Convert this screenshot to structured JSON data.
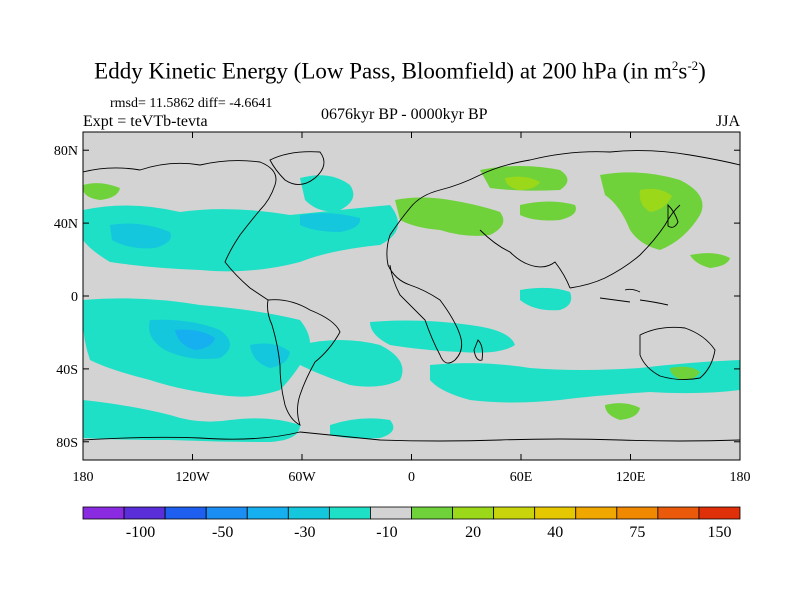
{
  "title": {
    "main": "Eddy Kinetic Energy (Low Pass, Bloomfield) at 200 hPa (in m",
    "sup1": "2",
    "mid": "s",
    "sup2": "-2",
    "close": ")"
  },
  "stats": "rmsd= 11.5862 diff= -4.6641",
  "expt": "Expt = teVTb-tevta",
  "period": "0676kyr BP - 0000kyr BP",
  "season": "JJA",
  "axes": {
    "lat_labels": [
      "80N",
      "40N",
      "0",
      "40S",
      "80S"
    ],
    "lat_values": [
      80,
      40,
      0,
      -40,
      -80
    ],
    "lon_labels": [
      "180",
      "120W",
      "60W",
      "0",
      "60E",
      "120E",
      "180"
    ],
    "lon_values": [
      -180,
      -120,
      -60,
      0,
      60,
      120,
      180
    ]
  },
  "colorbar": {
    "colors": [
      "#8a2be2",
      "#5a2ed8",
      "#1f5ff0",
      "#1a8ef2",
      "#16b0f0",
      "#14c7dc",
      "#1ee0c6",
      "#d3d3d3",
      "#6fd23a",
      "#9bd81a",
      "#c8d40c",
      "#e6c800",
      "#f0a800",
      "#f08800",
      "#ea5a0a",
      "#e0300a"
    ],
    "labels": [
      "-100",
      "-50",
      "-30",
      "-10",
      "20",
      "40",
      "75",
      "150"
    ]
  },
  "legend": {
    "gray": "#d3d3d3",
    "light_teal": "#1ee0c6",
    "teal": "#14c7dc",
    "blue": "#16b0f0",
    "green": "#6fd23a",
    "yellow_green": "#9bd81a"
  }
}
